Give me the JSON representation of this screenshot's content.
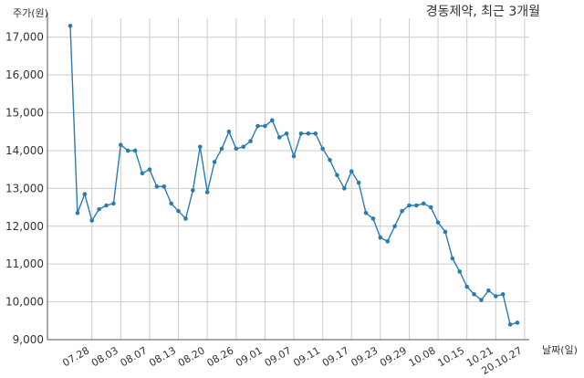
{
  "chart_data": {
    "type": "line",
    "title": "경동제약, 최근 3개월",
    "ylabel": "주가(원)",
    "xlabel": "날짜(일)",
    "ylim": [
      9000,
      17500
    ],
    "yticks": [
      9000,
      10000,
      11000,
      12000,
      13000,
      14000,
      15000,
      16000,
      17000
    ],
    "ytick_labels": [
      "9,000",
      "10,000",
      "11,000",
      "12,000",
      "13,000",
      "14,000",
      "15,000",
      "16,000",
      "17,000"
    ],
    "xtick_labels": [
      "07.28",
      "08.03",
      "08.07",
      "08.13",
      "08.20",
      "08.26",
      "09.01",
      "09.07",
      "09.11",
      "09.17",
      "09.23",
      "09.29",
      "10.08",
      "10.15",
      "10.21",
      "20.10.27"
    ],
    "grid": true,
    "line_color": "#2b7bb0",
    "series": [
      {
        "values": [
          17300,
          12350,
          12850,
          12150,
          12450,
          12550,
          12600,
          14150,
          14000,
          14000,
          13400,
          13500,
          13050,
          13050,
          12600,
          12400,
          12200,
          12950,
          14100,
          12900,
          13700,
          14050,
          14500,
          14050,
          14100,
          14250,
          14650,
          14650,
          14800,
          14350,
          14450,
          13850,
          14450,
          14450,
          14450,
          14050,
          13750,
          13350,
          13000,
          13450,
          13150,
          12350,
          12200,
          11700,
          11600,
          12000,
          12400,
          12550,
          12550,
          12600,
          12500,
          12100,
          11850,
          11150,
          10800,
          10400,
          10200,
          10050,
          10300,
          10150,
          10200,
          9400,
          9450
        ]
      }
    ]
  }
}
